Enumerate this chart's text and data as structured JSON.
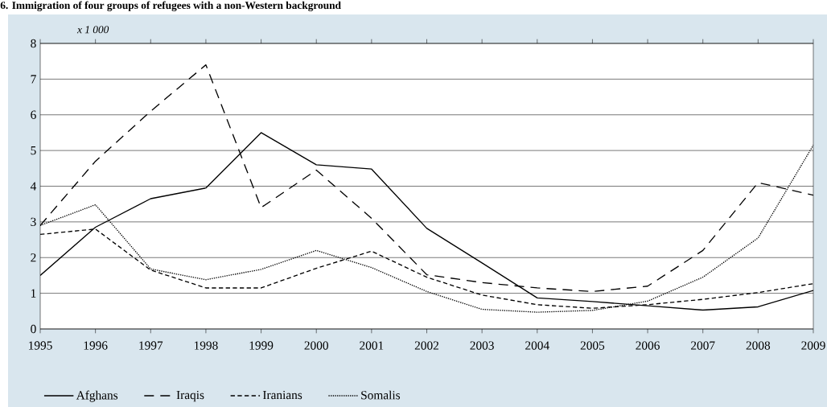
{
  "chart_data": {
    "type": "line",
    "title": "6. Immigration of four groups of refugees with a non-Western background",
    "ylabel": "x 1 000",
    "x": [
      1995,
      1996,
      1997,
      1998,
      1999,
      2000,
      2001,
      2002,
      2003,
      2004,
      2005,
      2006,
      2007,
      2008,
      2009
    ],
    "xlim": [
      1995,
      2009
    ],
    "xticks": [
      1995,
      1996,
      1997,
      1998,
      1999,
      2000,
      2001,
      2002,
      2003,
      2004,
      2005,
      2006,
      2007,
      2008,
      2009
    ],
    "ylim": [
      0,
      8
    ],
    "yticks": [
      0,
      1,
      2,
      3,
      4,
      5,
      6,
      7,
      8
    ],
    "grid": "y",
    "legend": "bottom",
    "marker": "none",
    "series": [
      {
        "name": "Afghans",
        "color": "#000000",
        "line_style": "solid",
        "values": [
          1.5,
          2.85,
          3.65,
          3.95,
          5.5,
          4.6,
          4.48,
          2.82,
          1.85,
          0.87,
          0.77,
          0.65,
          0.53,
          0.62,
          1.08
        ]
      },
      {
        "name": "Iraqis",
        "color": "#000000",
        "line_style": "longdashed",
        "values": [
          2.9,
          4.7,
          6.1,
          7.4,
          3.4,
          4.45,
          3.1,
          1.52,
          1.3,
          1.15,
          1.05,
          1.2,
          2.2,
          4.1,
          3.75
        ]
      },
      {
        "name": "Iranians",
        "color": "#000000",
        "line_style": "dashed",
        "values": [
          2.65,
          2.8,
          1.65,
          1.15,
          1.15,
          1.7,
          2.18,
          1.45,
          0.95,
          0.68,
          0.58,
          0.68,
          0.83,
          1.02,
          1.27
        ]
      },
      {
        "name": "Somalis",
        "color": "#000000",
        "line_style": "dotted",
        "values": [
          2.9,
          3.48,
          1.68,
          1.38,
          1.67,
          2.2,
          1.72,
          1.05,
          0.55,
          0.47,
          0.52,
          0.78,
          1.45,
          2.55,
          5.15
        ]
      }
    ]
  }
}
